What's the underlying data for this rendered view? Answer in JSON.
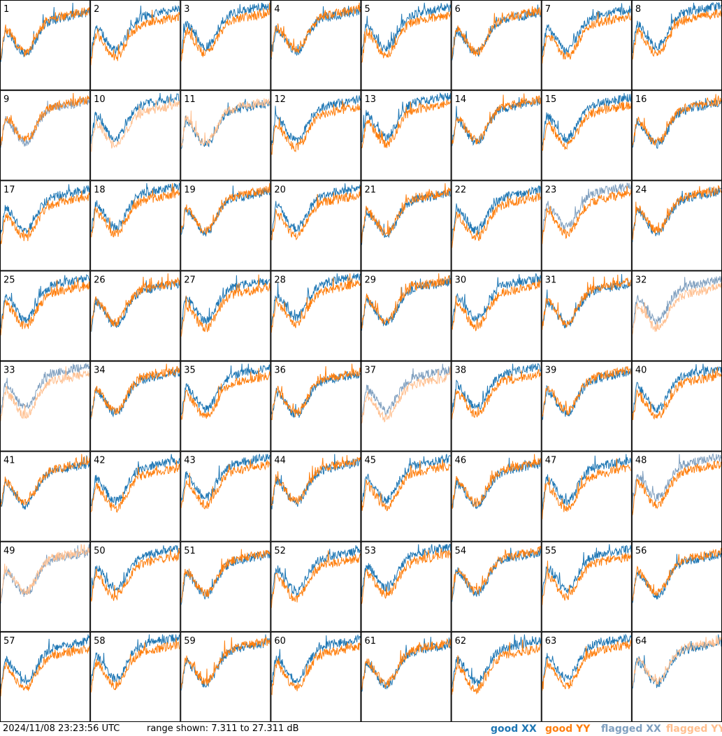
{
  "chart_data": {
    "type": "line",
    "panels": [
      "1",
      "2",
      "3",
      "4",
      "5",
      "6",
      "7",
      "8",
      "9",
      "10",
      "11",
      "12",
      "13",
      "14",
      "15",
      "16",
      "17",
      "18",
      "19",
      "20",
      "21",
      "22",
      "23",
      "24",
      "25",
      "26",
      "27",
      "28",
      "29",
      "30",
      "31",
      "32",
      "33",
      "34",
      "35",
      "36",
      "37",
      "38",
      "39",
      "40",
      "41",
      "42",
      "43",
      "44",
      "45",
      "46",
      "47",
      "48",
      "49",
      "50",
      "51",
      "52",
      "53",
      "54",
      "55",
      "56",
      "57",
      "58",
      "59",
      "60",
      "61",
      "62",
      "63",
      "64"
    ],
    "range_db": [
      7.311,
      27.311
    ],
    "series": [
      {
        "name": "good XX",
        "color": "#1f77b4"
      },
      {
        "name": "good YY",
        "color": "#ff7f0e"
      },
      {
        "name": "flagged XX",
        "color": "#7f9fbf"
      },
      {
        "name": "flagged YY",
        "color": "#ffbf8f"
      }
    ],
    "panel_status": {
      "1": [
        "good",
        "good"
      ],
      "5": [
        "good",
        "good"
      ],
      "9": [
        "flagged",
        "good"
      ],
      "10": [
        "good",
        "flagged"
      ],
      "11": [
        "good",
        "flagged"
      ],
      "16": [
        "good",
        "good"
      ],
      "23": [
        "flagged",
        "good"
      ],
      "32": [
        "flagged",
        "flagged"
      ],
      "33": [
        "flagged",
        "flagged"
      ],
      "37": [
        "flagged",
        "flagged"
      ],
      "48": [
        "flagged",
        "good"
      ],
      "49": [
        "flagged",
        "flagged"
      ],
      "64": [
        "good",
        "flagged"
      ]
    }
  },
  "footer": {
    "timestamp": "2024/11/08 23:23:56 UTC",
    "range_text": "range shown: 7.311 to 27.311 dB"
  },
  "legend": {
    "good_xx": "good XX",
    "good_yy": "good YY",
    "flagged_xx": "flagged XX",
    "flagged_yy": "flagged YY"
  }
}
